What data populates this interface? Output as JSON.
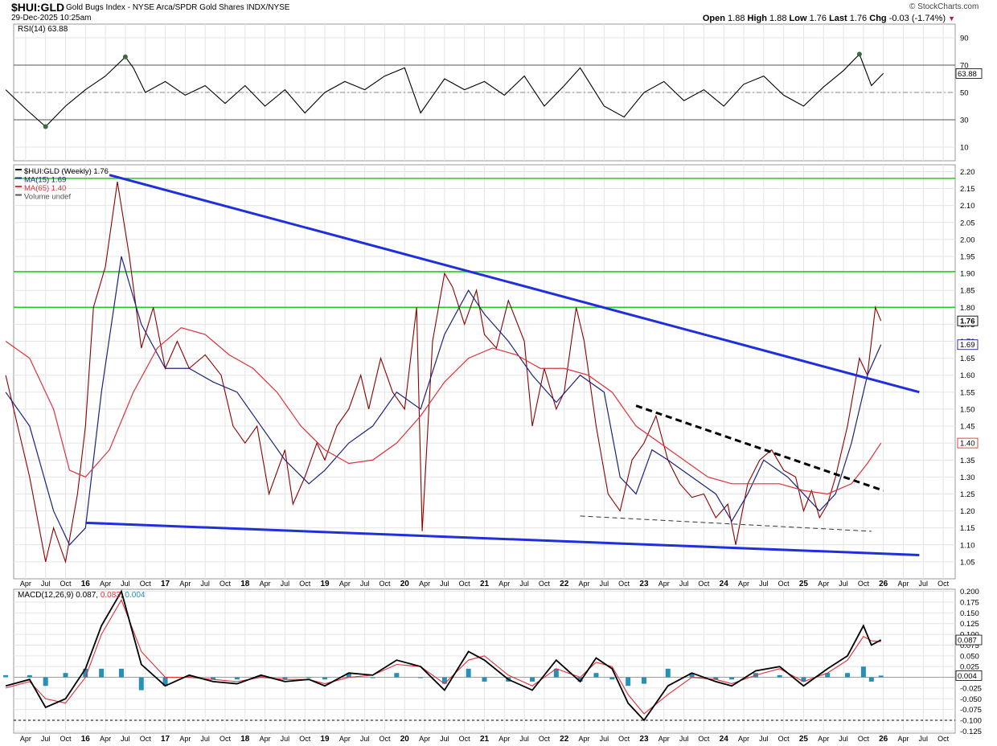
{
  "header": {
    "symbol": "$HUI:GLD",
    "description": "Gold Bugs Index - NYSE Arca/SPDR Gold Shares",
    "exchange": "INDX/NYSE",
    "datetime": "29-Dec-2025 10:25am",
    "brand": "© StockCharts.com",
    "open_label": "Open",
    "open": "1.88",
    "high_label": "High",
    "high": "1.88",
    "low_label": "Low",
    "low": "1.76",
    "last_label": "Last",
    "last": "1.76",
    "chg_label": "Chg",
    "chg": "-0.03 (-1.74%)",
    "chg_marker": "▼"
  },
  "colors": {
    "price": "#8b0000",
    "ma15": "#1a237e",
    "ma65": "#e0303a",
    "trend": "#1f2fe0",
    "horizontal": "#22cc22",
    "rsi_line": "#000000",
    "rsi_fill": "#3a6b46",
    "macd_hist": "#2a8fb5",
    "macd_signal": "#e0303a"
  },
  "chart_data": [
    {
      "type": "line",
      "panel": "rsi",
      "label": "RSI(14)",
      "value": "63.88",
      "yticks": [
        90,
        70,
        50,
        30,
        10
      ],
      "ylim": [
        0,
        100
      ],
      "reference_lines": [
        70,
        50,
        30
      ],
      "x": [
        2015.0,
        2015.25,
        2015.5,
        2015.75,
        2016.0,
        2016.25,
        2016.5,
        2016.6,
        2016.75,
        2017.0,
        2017.25,
        2017.5,
        2017.75,
        2018.0,
        2018.25,
        2018.5,
        2018.75,
        2019.0,
        2019.25,
        2019.5,
        2019.75,
        2020.0,
        2020.2,
        2020.5,
        2020.75,
        2021.0,
        2021.25,
        2021.5,
        2021.75,
        2022.0,
        2022.2,
        2022.5,
        2022.75,
        2023.0,
        2023.25,
        2023.5,
        2023.75,
        2024.0,
        2024.25,
        2024.5,
        2024.75,
        2025.0,
        2025.25,
        2025.5,
        2025.7,
        2025.85,
        2026.0
      ],
      "values": [
        52,
        38,
        25,
        40,
        52,
        62,
        76,
        68,
        50,
        58,
        48,
        55,
        42,
        55,
        40,
        52,
        35,
        50,
        58,
        52,
        62,
        68,
        35,
        60,
        52,
        58,
        48,
        62,
        40,
        55,
        68,
        40,
        32,
        50,
        58,
        44,
        52,
        40,
        56,
        62,
        48,
        40,
        54,
        66,
        78,
        55,
        64
      ]
    },
    {
      "type": "line",
      "panel": "price",
      "title": "$HUI:GLD (Weekly) 1.76",
      "legend": [
        {
          "name": "$HUI:GLD (Weekly) 1.76",
          "color": "#000000"
        },
        {
          "name": "MA(15) 1.69",
          "color": "#1a237e"
        },
        {
          "name": "MA(65) 1.40",
          "color": "#e0303a"
        },
        {
          "name": "Volume undef",
          "color": "#555555"
        }
      ],
      "yticks": [
        2.2,
        2.15,
        2.1,
        2.05,
        2.0,
        1.95,
        1.9,
        1.85,
        1.8,
        1.75,
        1.7,
        1.65,
        1.6,
        1.55,
        1.5,
        1.45,
        1.4,
        1.35,
        1.3,
        1.25,
        1.2,
        1.15,
        1.1,
        1.05
      ],
      "ylim": [
        1.0,
        2.22
      ],
      "value_flags": [
        {
          "label": "1.76",
          "value": 1.76
        },
        {
          "label": "1.69",
          "value": 1.69
        },
        {
          "label": "1.40",
          "value": 1.4
        }
      ],
      "x_year_labels": [
        "16",
        "17",
        "18",
        "19",
        "20",
        "21",
        "22",
        "23",
        "24",
        "25",
        "26"
      ],
      "x_month_labels": [
        "Apr",
        "Jul",
        "Oct"
      ],
      "x_range": [
        2015.1,
        2026.9
      ],
      "series": [
        {
          "name": "$HUI:GLD (Weekly)",
          "x": [
            2015.0,
            2015.15,
            2015.3,
            2015.5,
            2015.6,
            2015.75,
            2015.9,
            2016.0,
            2016.1,
            2016.25,
            2016.4,
            2016.55,
            2016.7,
            2016.85,
            2017.0,
            2017.15,
            2017.3,
            2017.5,
            2017.7,
            2017.85,
            2018.0,
            2018.15,
            2018.3,
            2018.5,
            2018.6,
            2018.75,
            2018.9,
            2019.0,
            2019.15,
            2019.3,
            2019.45,
            2019.55,
            2019.7,
            2019.85,
            2020.0,
            2020.15,
            2020.22,
            2020.35,
            2020.5,
            2020.6,
            2020.75,
            2020.9,
            2021.0,
            2021.15,
            2021.3,
            2021.5,
            2021.6,
            2021.75,
            2021.9,
            2022.0,
            2022.15,
            2022.25,
            2022.4,
            2022.55,
            2022.7,
            2022.85,
            2023.0,
            2023.15,
            2023.3,
            2023.45,
            2023.6,
            2023.75,
            2023.9,
            2024.05,
            2024.15,
            2024.3,
            2024.45,
            2024.6,
            2024.75,
            2024.9,
            2025.0,
            2025.1,
            2025.2,
            2025.3,
            2025.4,
            2025.55,
            2025.7,
            2025.8,
            2025.9,
            2025.97
          ],
          "values": [
            1.6,
            1.45,
            1.3,
            1.05,
            1.15,
            1.05,
            1.25,
            1.45,
            1.8,
            1.92,
            2.17,
            1.95,
            1.68,
            1.8,
            1.62,
            1.7,
            1.62,
            1.66,
            1.6,
            1.45,
            1.4,
            1.45,
            1.25,
            1.38,
            1.22,
            1.3,
            1.4,
            1.35,
            1.45,
            1.5,
            1.6,
            1.5,
            1.65,
            1.55,
            1.5,
            1.8,
            1.14,
            1.7,
            1.9,
            1.86,
            1.75,
            1.85,
            1.72,
            1.68,
            1.82,
            1.7,
            1.45,
            1.62,
            1.5,
            1.55,
            1.8,
            1.7,
            1.45,
            1.25,
            1.2,
            1.35,
            1.4,
            1.48,
            1.35,
            1.28,
            1.24,
            1.25,
            1.18,
            1.22,
            1.1,
            1.28,
            1.35,
            1.38,
            1.32,
            1.3,
            1.2,
            1.26,
            1.18,
            1.22,
            1.3,
            1.45,
            1.65,
            1.6,
            1.8,
            1.76
          ]
        },
        {
          "name": "MA(15)",
          "x": [
            2015.0,
            2015.3,
            2015.6,
            2015.8,
            2016.0,
            2016.2,
            2016.45,
            2016.7,
            2017.0,
            2017.3,
            2017.6,
            2017.9,
            2018.2,
            2018.5,
            2018.8,
            2019.0,
            2019.3,
            2019.6,
            2019.9,
            2020.2,
            2020.5,
            2020.8,
            2021.0,
            2021.3,
            2021.6,
            2021.9,
            2022.2,
            2022.5,
            2022.7,
            2022.9,
            2023.1,
            2023.3,
            2023.6,
            2023.9,
            2024.1,
            2024.3,
            2024.5,
            2024.8,
            2025.0,
            2025.2,
            2025.4,
            2025.6,
            2025.8,
            2025.97
          ],
          "values": [
            1.55,
            1.45,
            1.2,
            1.1,
            1.15,
            1.55,
            1.95,
            1.75,
            1.62,
            1.62,
            1.58,
            1.55,
            1.45,
            1.35,
            1.28,
            1.32,
            1.4,
            1.45,
            1.55,
            1.5,
            1.72,
            1.85,
            1.78,
            1.7,
            1.6,
            1.52,
            1.6,
            1.55,
            1.3,
            1.25,
            1.38,
            1.35,
            1.3,
            1.25,
            1.17,
            1.25,
            1.35,
            1.3,
            1.25,
            1.2,
            1.25,
            1.4,
            1.6,
            1.69
          ]
        },
        {
          "name": "MA(65)",
          "x": [
            2015.0,
            2015.3,
            2015.6,
            2015.8,
            2016.0,
            2016.3,
            2016.6,
            2016.9,
            2017.2,
            2017.5,
            2017.8,
            2018.1,
            2018.4,
            2018.7,
            2019.0,
            2019.3,
            2019.6,
            2019.9,
            2020.2,
            2020.5,
            2020.8,
            2021.1,
            2021.4,
            2021.7,
            2022.0,
            2022.3,
            2022.6,
            2022.9,
            2023.2,
            2023.5,
            2023.8,
            2024.1,
            2024.4,
            2024.7,
            2025.0,
            2025.3,
            2025.6,
            2025.8,
            2025.97
          ],
          "values": [
            1.7,
            1.65,
            1.5,
            1.32,
            1.3,
            1.38,
            1.55,
            1.68,
            1.74,
            1.72,
            1.66,
            1.62,
            1.55,
            1.45,
            1.38,
            1.34,
            1.35,
            1.4,
            1.48,
            1.58,
            1.65,
            1.68,
            1.66,
            1.62,
            1.62,
            1.6,
            1.55,
            1.45,
            1.4,
            1.35,
            1.3,
            1.28,
            1.28,
            1.28,
            1.26,
            1.25,
            1.28,
            1.34,
            1.4
          ]
        }
      ],
      "trendlines": [
        {
          "style": "solid-blue",
          "from": [
            2016.3,
            2.19
          ],
          "to": [
            2026.45,
            1.55
          ]
        },
        {
          "style": "solid-blue",
          "from": [
            2016.0,
            1.165
          ],
          "to": [
            2026.45,
            1.07
          ]
        },
        {
          "style": "dashed-black-thick",
          "from": [
            2022.9,
            1.51
          ],
          "to": [
            2026.0,
            1.26
          ]
        },
        {
          "style": "dashed-gray-thin",
          "from": [
            2022.2,
            1.185
          ],
          "to": [
            2025.85,
            1.14
          ]
        }
      ],
      "horizontal_lines": [
        2.18,
        1.905,
        1.8
      ]
    },
    {
      "type": "line",
      "panel": "macd",
      "label": "MACD(12,26,9)",
      "values_text": [
        "0.087",
        "0.083",
        "0.004"
      ],
      "yticks": [
        0.2,
        0.175,
        0.15,
        0.125,
        0.1,
        0.075,
        0.05,
        0.025,
        0.0,
        -0.025,
        -0.05,
        -0.075,
        -0.1,
        -0.125
      ],
      "ylim": [
        -0.13,
        0.205
      ],
      "value_flags": [
        {
          "label": "0.087",
          "value": 0.087
        },
        {
          "label": "0.004",
          "value": 0.004
        }
      ],
      "x": [
        2015.0,
        2015.3,
        2015.5,
        2015.75,
        2016.0,
        2016.2,
        2016.45,
        2016.7,
        2017.0,
        2017.3,
        2017.6,
        2017.9,
        2018.2,
        2018.5,
        2018.8,
        2019.0,
        2019.3,
        2019.6,
        2019.9,
        2020.2,
        2020.5,
        2020.8,
        2021.0,
        2021.3,
        2021.6,
        2021.9,
        2022.2,
        2022.4,
        2022.6,
        2022.8,
        2023.0,
        2023.3,
        2023.6,
        2023.9,
        2024.1,
        2024.4,
        2024.7,
        2025.0,
        2025.3,
        2025.55,
        2025.75,
        2025.85,
        2025.97
      ],
      "series": [
        {
          "name": "MACD",
          "values": [
            -0.02,
            -0.005,
            -0.07,
            -0.05,
            0.02,
            0.12,
            0.2,
            0.03,
            -0.02,
            0.005,
            -0.01,
            -0.015,
            0.005,
            -0.01,
            -0.005,
            -0.02,
            0.01,
            0.005,
            0.04,
            0.025,
            -0.03,
            0.06,
            0.04,
            -0.005,
            -0.03,
            0.04,
            -0.01,
            0.045,
            0.02,
            -0.06,
            -0.1,
            -0.02,
            0.01,
            -0.01,
            -0.02,
            0.015,
            0.025,
            -0.02,
            0.02,
            0.05,
            0.12,
            0.075,
            0.087
          ]
        },
        {
          "name": "Signal",
          "values": [
            -0.025,
            -0.01,
            -0.05,
            -0.06,
            0.0,
            0.1,
            0.18,
            0.06,
            0.0,
            0.0,
            -0.005,
            -0.01,
            0.0,
            -0.005,
            -0.005,
            -0.015,
            0.0,
            0.005,
            0.03,
            0.025,
            -0.015,
            0.04,
            0.05,
            0.005,
            -0.02,
            0.02,
            0.0,
            0.035,
            0.025,
            -0.04,
            -0.085,
            -0.04,
            0.0,
            -0.005,
            -0.015,
            0.005,
            0.02,
            -0.01,
            0.01,
            0.04,
            0.095,
            0.085,
            0.083
          ]
        },
        {
          "name": "Histogram",
          "values": [
            0.005,
            0.005,
            -0.02,
            0.01,
            0.02,
            0.02,
            0.02,
            -0.03,
            -0.02,
            0.005,
            -0.005,
            -0.005,
            0.005,
            -0.005,
            0.0,
            -0.005,
            0.01,
            0.0,
            0.01,
            0.0,
            -0.015,
            0.02,
            -0.01,
            -0.01,
            -0.01,
            0.02,
            -0.01,
            0.01,
            -0.005,
            -0.02,
            -0.015,
            0.02,
            0.01,
            -0.005,
            -0.005,
            0.01,
            0.005,
            -0.01,
            0.01,
            0.01,
            0.025,
            -0.01,
            0.004
          ]
        }
      ]
    }
  ]
}
